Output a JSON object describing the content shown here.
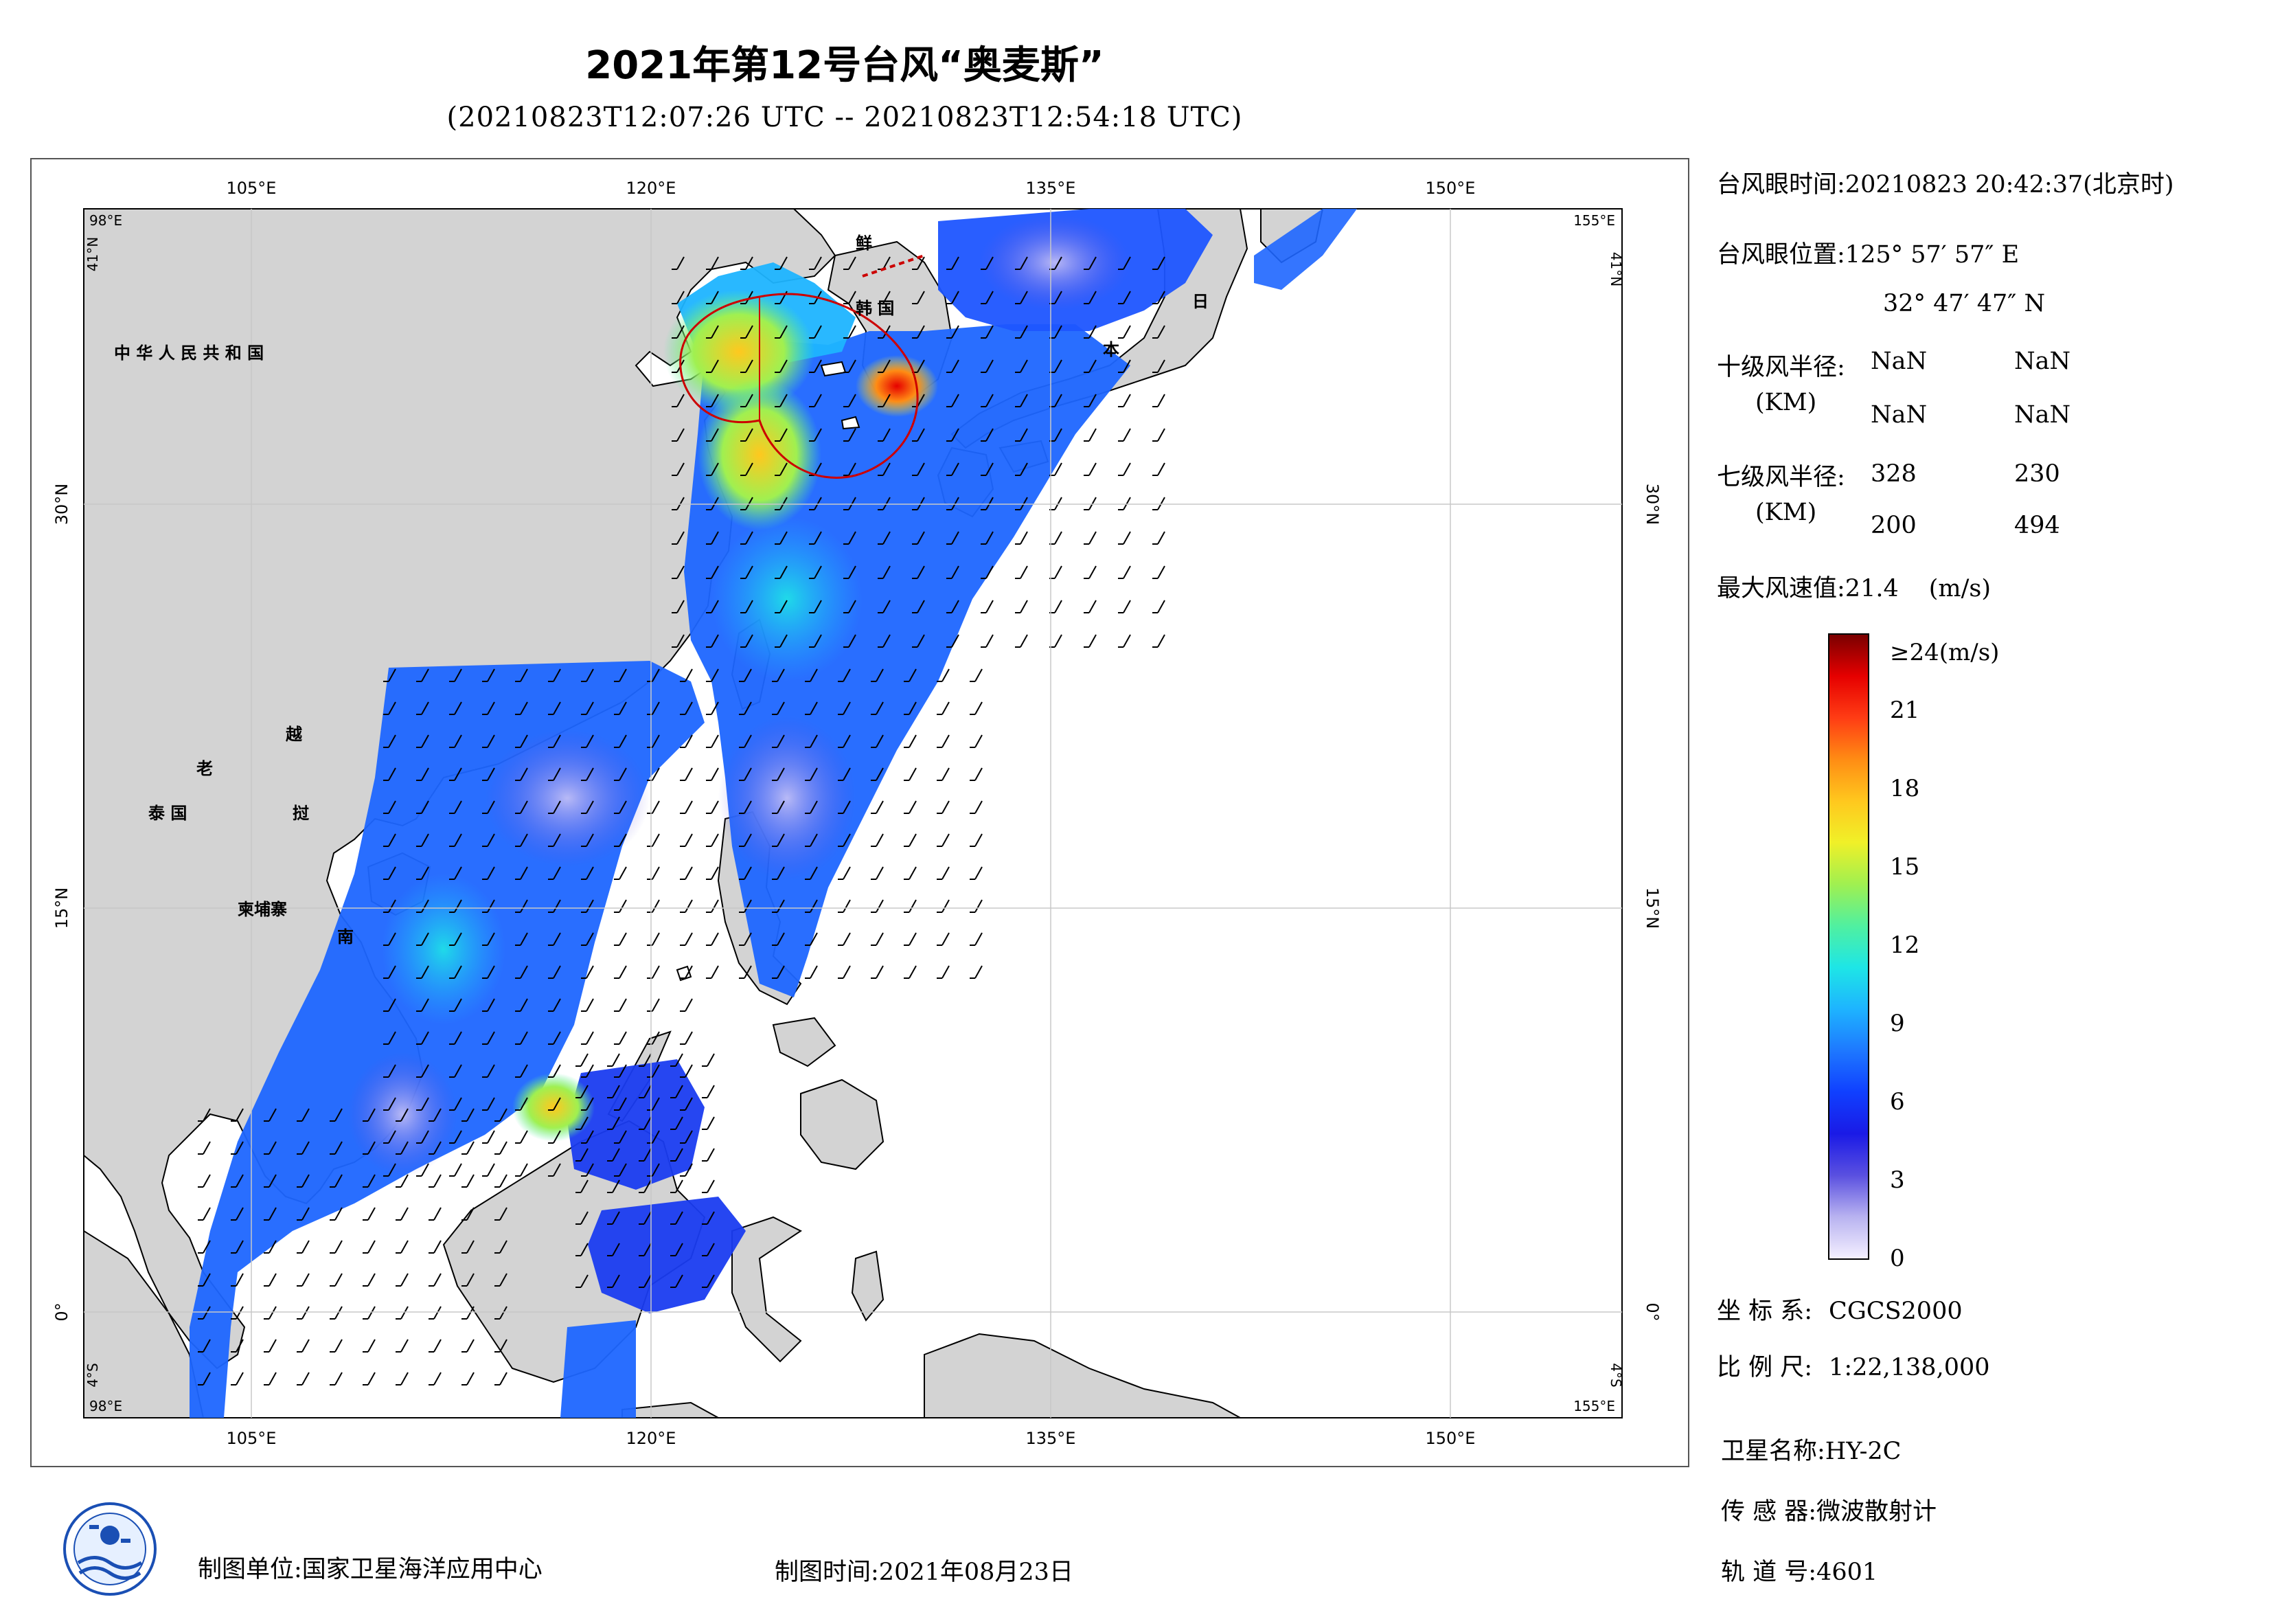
{
  "header": {
    "title": "2021年第12号台风“奥麦斯”",
    "subtitle": "(20210823T12:07:26 UTC -- 20210823T12:54:18 UTC)"
  },
  "map": {
    "lon_ticks": [
      "105°E",
      "120°E",
      "135°E",
      "150°E"
    ],
    "lat_ticks": [
      "30°N",
      "15°N",
      "0°"
    ],
    "corner_labels": {
      "top_left_lon": "98°E",
      "top_left_lat": "41°N",
      "top_right_lon": "155°E",
      "top_right_lat": "41°N",
      "bottom_left_lon": "98°E",
      "bottom_left_lat": "4°S",
      "bottom_right_lon": "155°E",
      "bottom_right_lat": "4°S"
    },
    "place_labels": {
      "china": "中 华 人 民 共 和 国",
      "korea_n": "鲜",
      "korea_s": "韩 国",
      "japan_1": "日",
      "japan_2": "本",
      "laos": "老",
      "vietnam_1": "越",
      "vietnam_2": "挝",
      "vietnam_3": "南",
      "thailand": "泰 国",
      "cambodia": "柬埔寨"
    },
    "colors": {
      "land": "#d3d3d3",
      "ocean": "#ffffff",
      "border": "#000000",
      "grid": "#c8c8c8",
      "wind_circle": "#cc0000"
    }
  },
  "info": {
    "eye_time_label": "台风眼时间:",
    "eye_time_value": "20210823 20:42:37(北京时)",
    "eye_pos_label": "台风眼位置:",
    "eye_lon": "125° 57′ 57″ E",
    "eye_lat": "32° 47′ 47″ N",
    "r10_label": "十级风半径:",
    "r10_unit": "(KM)",
    "r10_values": [
      "NaN",
      "NaN",
      "NaN",
      "NaN"
    ],
    "r7_label": "七级风半径:",
    "r7_unit": "(KM)",
    "r7_values": [
      "328",
      "230",
      "200",
      "494"
    ],
    "max_wind_label": "最大风速值:",
    "max_wind_value": "21.4",
    "max_wind_unit": "(m/s)"
  },
  "colorbar": {
    "title": "≥24(m/s)",
    "ticks": [
      "21",
      "18",
      "15",
      "12",
      "9",
      "6",
      "3",
      "0"
    ],
    "tick_values": [
      21,
      18,
      15,
      12,
      9,
      6,
      3,
      0
    ],
    "max": 24,
    "colors": [
      "#f4f0ff",
      "#b8b2f0",
      "#5a50e0",
      "#1a1ae6",
      "#1040ff",
      "#1e78ff",
      "#1eb4ff",
      "#1ee6e6",
      "#50f0a0",
      "#a0f050",
      "#f0f028",
      "#ffc81e",
      "#ff8c14",
      "#ff3c14",
      "#e60000",
      "#7a0000"
    ]
  },
  "meta": {
    "crs_label": "坐 标 系:",
    "crs_value": "CGCS2000",
    "scale_label": "比 例 尺:",
    "scale_value": "1:22,138,000",
    "satellite_label": "卫星名称:",
    "satellite_value": "HY-2C",
    "sensor_label": "传 感 器:",
    "sensor_value": "微波散射计",
    "orbit_label": "轨 道 号:",
    "orbit_value": "4601"
  },
  "footer": {
    "producer_label": "制图单位:",
    "producer_value": "国家卫星海洋应用中心",
    "date_label": "制图时间:",
    "date_value": "2021年08月23日"
  }
}
